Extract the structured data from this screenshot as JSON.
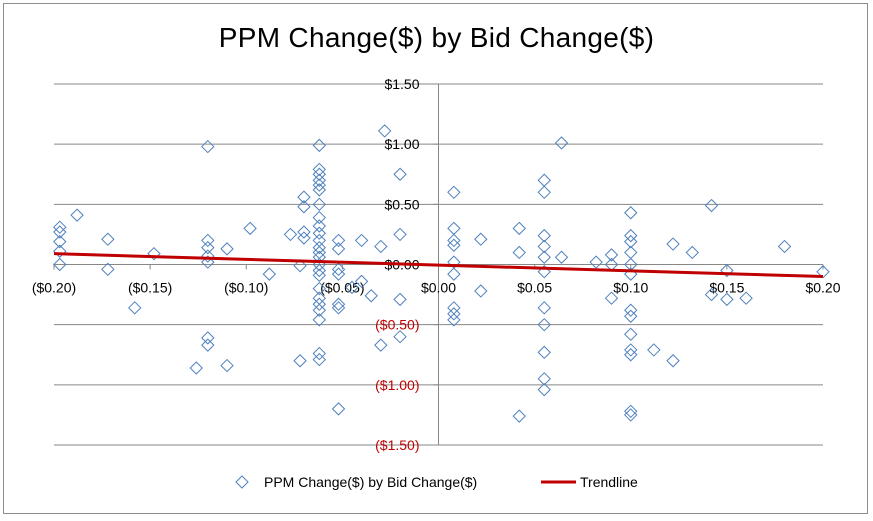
{
  "chart_data": {
    "type": "scatter",
    "title": "PPM Change($) by Bid Change($)",
    "xlim": [
      -0.2,
      0.2
    ],
    "ylim": [
      -1.5,
      1.5
    ],
    "x_ticks": [
      -0.2,
      -0.15,
      -0.1,
      -0.05,
      0.0,
      0.05,
      0.1,
      0.15,
      0.2
    ],
    "x_tick_labels": [
      "($0.20)",
      "($0.15)",
      "($0.10)",
      "($0.05)",
      "$0.00",
      "$0.05",
      "$0.10",
      "$0.15",
      "$0.20"
    ],
    "y_ticks": [
      1.5,
      1.0,
      0.5,
      0.0,
      -0.5,
      -1.0,
      -1.5
    ],
    "y_tick_labels": [
      "$1.50",
      "$1.00",
      "$0.50",
      "$0.00",
      "($0.50)",
      "($1.00)",
      "($1.50)"
    ],
    "grid": "horizontal",
    "legend_position": "bottom",
    "negative_label_color": "#c00000",
    "series": [
      {
        "name": "PPM Change($) by Bid Change($)",
        "marker": "diamond",
        "color": "#4f81bd",
        "points": [
          [
            -0.197,
            0.31
          ],
          [
            -0.197,
            0.27
          ],
          [
            -0.197,
            0.19
          ],
          [
            -0.197,
            0.11
          ],
          [
            -0.197,
            0.0
          ],
          [
            -0.188,
            0.41
          ],
          [
            -0.172,
            0.21
          ],
          [
            -0.172,
            -0.04
          ],
          [
            -0.158,
            -0.36
          ],
          [
            -0.148,
            0.09
          ],
          [
            -0.126,
            -0.86
          ],
          [
            -0.12,
            0.98
          ],
          [
            -0.12,
            0.2
          ],
          [
            -0.12,
            0.14
          ],
          [
            -0.12,
            0.07
          ],
          [
            -0.12,
            0.02
          ],
          [
            -0.12,
            -0.61
          ],
          [
            -0.12,
            -0.67
          ],
          [
            -0.11,
            0.13
          ],
          [
            -0.11,
            -0.84
          ],
          [
            -0.098,
            0.3
          ],
          [
            -0.088,
            -0.08
          ],
          [
            -0.077,
            0.25
          ],
          [
            -0.072,
            -0.8
          ],
          [
            -0.072,
            -0.01
          ],
          [
            -0.07,
            0.56
          ],
          [
            -0.07,
            0.48
          ],
          [
            -0.07,
            0.27
          ],
          [
            -0.07,
            0.22
          ],
          [
            -0.062,
            0.99
          ],
          [
            -0.062,
            0.79
          ],
          [
            -0.062,
            0.75
          ],
          [
            -0.062,
            0.7
          ],
          [
            -0.062,
            0.66
          ],
          [
            -0.062,
            0.62
          ],
          [
            -0.062,
            0.5
          ],
          [
            -0.062,
            0.39
          ],
          [
            -0.062,
            0.32
          ],
          [
            -0.062,
            0.26
          ],
          [
            -0.062,
            0.2
          ],
          [
            -0.062,
            0.14
          ],
          [
            -0.062,
            0.1
          ],
          [
            -0.062,
            0.06
          ],
          [
            -0.062,
            0.0
          ],
          [
            -0.062,
            -0.05
          ],
          [
            -0.062,
            -0.09
          ],
          [
            -0.062,
            -0.2
          ],
          [
            -0.062,
            -0.28
          ],
          [
            -0.062,
            -0.33
          ],
          [
            -0.062,
            -0.38
          ],
          [
            -0.062,
            -0.46
          ],
          [
            -0.062,
            -0.74
          ],
          [
            -0.062,
            -0.79
          ],
          [
            -0.052,
            0.2
          ],
          [
            -0.052,
            0.13
          ],
          [
            -0.052,
            -0.04
          ],
          [
            -0.052,
            -0.08
          ],
          [
            -0.052,
            -0.33
          ],
          [
            -0.052,
            -0.36
          ],
          [
            -0.052,
            -1.2
          ],
          [
            -0.045,
            -0.19
          ],
          [
            -0.04,
            0.2
          ],
          [
            -0.04,
            -0.14
          ],
          [
            -0.035,
            -0.26
          ],
          [
            -0.03,
            -0.67
          ],
          [
            -0.03,
            0.15
          ],
          [
            -0.028,
            1.11
          ],
          [
            -0.02,
            0.75
          ],
          [
            -0.02,
            0.25
          ],
          [
            -0.02,
            -0.29
          ],
          [
            -0.02,
            -0.6
          ],
          [
            0.008,
            0.6
          ],
          [
            0.008,
            0.3
          ],
          [
            0.008,
            0.2
          ],
          [
            0.008,
            0.16
          ],
          [
            0.008,
            0.02
          ],
          [
            0.008,
            -0.08
          ],
          [
            0.008,
            -0.36
          ],
          [
            0.008,
            -0.41
          ],
          [
            0.008,
            -0.46
          ],
          [
            0.022,
            0.21
          ],
          [
            0.022,
            -0.22
          ],
          [
            0.042,
            0.3
          ],
          [
            0.042,
            0.1
          ],
          [
            0.042,
            -1.26
          ],
          [
            0.055,
            0.7
          ],
          [
            0.055,
            0.6
          ],
          [
            0.055,
            0.24
          ],
          [
            0.055,
            0.15
          ],
          [
            0.055,
            0.06
          ],
          [
            0.055,
            -0.06
          ],
          [
            0.055,
            -0.36
          ],
          [
            0.055,
            -0.5
          ],
          [
            0.055,
            -0.73
          ],
          [
            0.055,
            -0.95
          ],
          [
            0.055,
            -1.04
          ],
          [
            0.064,
            1.01
          ],
          [
            0.064,
            0.06
          ],
          [
            0.082,
            0.02
          ],
          [
            0.09,
            0.08
          ],
          [
            0.09,
            0.0
          ],
          [
            0.09,
            -0.28
          ],
          [
            0.1,
            0.43
          ],
          [
            0.1,
            0.24
          ],
          [
            0.1,
            0.19
          ],
          [
            0.1,
            0.1
          ],
          [
            0.1,
            0.0
          ],
          [
            0.1,
            -0.08
          ],
          [
            0.1,
            -0.38
          ],
          [
            0.1,
            -0.43
          ],
          [
            0.1,
            -0.58
          ],
          [
            0.1,
            -0.71
          ],
          [
            0.1,
            -0.75
          ],
          [
            0.1,
            -1.22
          ],
          [
            0.1,
            -1.25
          ],
          [
            0.112,
            -0.71
          ],
          [
            0.122,
            0.17
          ],
          [
            0.122,
            -0.8
          ],
          [
            0.132,
            0.1
          ],
          [
            0.142,
            0.49
          ],
          [
            0.142,
            -0.25
          ],
          [
            0.15,
            -0.05
          ],
          [
            0.15,
            -0.29
          ],
          [
            0.16,
            -0.28
          ],
          [
            0.18,
            0.15
          ],
          [
            0.2,
            -0.06
          ]
        ]
      },
      {
        "name": "Trendline",
        "type": "line",
        "color": "#c00000",
        "x": [
          -0.2,
          0.2
        ],
        "y": [
          0.09,
          -0.1
        ]
      }
    ]
  }
}
